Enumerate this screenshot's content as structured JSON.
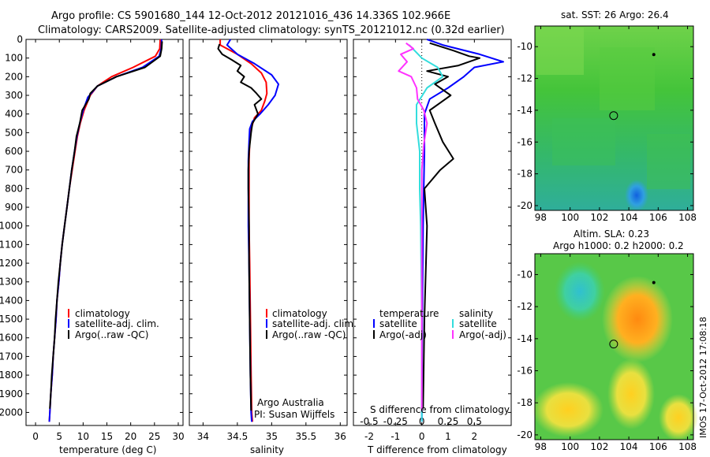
{
  "header": {
    "line1": "Argo profile: CS 5901680_144 12-Oct-2012 20121016_436 14.336S 102.966E",
    "line2": "Climatology: CARS2009. Satellite-adjusted climatology: synTS_20121012.nc (0.32d earlier)"
  },
  "stamp": "IMOS 17-Oct-2012 17:08:18",
  "colors": {
    "climatology": "#ff0000",
    "satellite": "#0000ff",
    "argo": "#000000",
    "argo_s_diff": "#ff33ff",
    "sat_s_diff": "#33dddd"
  },
  "chart_data": [
    {
      "id": "temperature",
      "type": "line",
      "xlabel": "temperature (deg C)",
      "ylabel": "",
      "xlim": [
        -2,
        31
      ],
      "ylim": [
        2070,
        0
      ],
      "xticks": [
        "0",
        "5",
        "10",
        "15",
        "20",
        "25",
        "30"
      ],
      "xtick_values": [
        0,
        5,
        10,
        15,
        20,
        25,
        30
      ],
      "yticks": [
        "0",
        "100",
        "200",
        "300",
        "400",
        "500",
        "600",
        "700",
        "800",
        "900",
        "1000",
        "1100",
        "1200",
        "1300",
        "1400",
        "1500",
        "1600",
        "1700",
        "1800",
        "1900",
        "2000"
      ],
      "ytick_values": [
        0,
        100,
        200,
        300,
        400,
        500,
        600,
        700,
        800,
        900,
        1000,
        1100,
        1200,
        1300,
        1400,
        1500,
        1600,
        1700,
        1800,
        1900,
        2000
      ],
      "legend": [
        "climatology",
        "satellite-adj. clim.",
        "Argo(..raw -QC)"
      ],
      "legend_position": "lower-left",
      "series": [
        {
          "name": "climatology",
          "color": "#ff0000",
          "points": [
            [
              26.2,
              0
            ],
            [
              26.1,
              50
            ],
            [
              25.2,
              90
            ],
            [
              20.5,
              150
            ],
            [
              16,
              200
            ],
            [
              13,
              250
            ],
            [
              11.5,
              300
            ],
            [
              10.2,
              380
            ],
            [
              9.4,
              450
            ],
            [
              8.8,
              520
            ],
            [
              8.3,
              600
            ],
            [
              7.7,
              700
            ],
            [
              7.1,
              800
            ],
            [
              6.6,
              900
            ],
            [
              6.1,
              1000
            ],
            [
              5.6,
              1100
            ],
            [
              5.2,
              1200
            ],
            [
              4.9,
              1300
            ],
            [
              4.5,
              1400
            ],
            [
              4.3,
              1500
            ],
            [
              4,
              1600
            ],
            [
              3.7,
              1700
            ],
            [
              3.5,
              1800
            ],
            [
              3.2,
              1900
            ],
            [
              3,
              2000
            ],
            [
              2.9,
              2050
            ]
          ]
        },
        {
          "name": "satellite-adj. clim.",
          "color": "#0000ff",
          "points": [
            [
              26.5,
              0
            ],
            [
              26.4,
              50
            ],
            [
              26.0,
              90
            ],
            [
              22.5,
              150
            ],
            [
              17,
              200
            ],
            [
              13,
              250
            ],
            [
              11,
              310
            ],
            [
              10,
              380
            ],
            [
              9.3,
              450
            ],
            [
              8.7,
              520
            ],
            [
              8.2,
              600
            ],
            [
              7.6,
              700
            ],
            [
              7.1,
              800
            ],
            [
              6.6,
              900
            ],
            [
              6.1,
              1000
            ],
            [
              5.6,
              1100
            ],
            [
              5.2,
              1200
            ],
            [
              4.9,
              1300
            ],
            [
              4.5,
              1400
            ],
            [
              4.3,
              1500
            ],
            [
              4,
              1600
            ],
            [
              3.7,
              1700
            ],
            [
              3.5,
              1800
            ],
            [
              3.2,
              1900
            ],
            [
              3,
              2000
            ],
            [
              2.9,
              2050
            ]
          ]
        },
        {
          "name": "Argo(..raw -QC)",
          "color": "#000000",
          "points": [
            [
              26.6,
              10
            ],
            [
              26.5,
              50
            ],
            [
              26.2,
              90
            ],
            [
              23,
              150
            ],
            [
              17,
              200
            ],
            [
              13,
              250
            ],
            [
              11.5,
              290
            ],
            [
              11.2,
              320
            ],
            [
              9.8,
              380
            ],
            [
              9.3,
              450
            ],
            [
              8.6,
              520
            ],
            [
              8.2,
              600
            ],
            [
              7.6,
              700
            ],
            [
              7.1,
              800
            ],
            [
              6.6,
              900
            ],
            [
              6.1,
              1000
            ],
            [
              5.6,
              1100
            ],
            [
              5.2,
              1200
            ],
            [
              4.8,
              1300
            ],
            [
              4.5,
              1400
            ],
            [
              4.2,
              1500
            ],
            [
              4,
              1600
            ],
            [
              3.7,
              1700
            ],
            [
              3.4,
              1800
            ],
            [
              3.2,
              1900
            ],
            [
              3,
              1980
            ]
          ]
        }
      ]
    },
    {
      "id": "salinity",
      "type": "line",
      "xlabel": "salinity",
      "ylabel": "",
      "xlim": [
        33.8,
        36.1
      ],
      "ylim": [
        2070,
        0
      ],
      "xticks": [
        "34",
        "34.5",
        "35",
        "35.5",
        "36"
      ],
      "xtick_values": [
        34,
        34.5,
        35,
        35.5,
        36
      ],
      "legend": [
        "climatology",
        "satellite-adj. clim.",
        "Argo(..raw -QC)"
      ],
      "legend_position": "lower-left",
      "annotation": [
        "Argo Australia",
        "PI: Susan Wijffels"
      ],
      "series": [
        {
          "name": "climatology",
          "color": "#ff0000",
          "points": [
            [
              34.25,
              0
            ],
            [
              34.25,
              30
            ],
            [
              34.5,
              80
            ],
            [
              34.7,
              130
            ],
            [
              34.85,
              180
            ],
            [
              34.92,
              230
            ],
            [
              34.93,
              290
            ],
            [
              34.9,
              330
            ],
            [
              34.85,
              380
            ],
            [
              34.75,
              420
            ],
            [
              34.7,
              480
            ],
            [
              34.68,
              550
            ],
            [
              34.67,
              650
            ],
            [
              34.67,
              800
            ],
            [
              34.67,
              1000
            ],
            [
              34.68,
              1200
            ],
            [
              34.69,
              1500
            ],
            [
              34.7,
              1800
            ],
            [
              34.71,
              2000
            ],
            [
              34.72,
              2050
            ]
          ]
        },
        {
          "name": "satellite-adj. clim.",
          "color": "#0000ff",
          "points": [
            [
              34.4,
              0
            ],
            [
              34.35,
              30
            ],
            [
              34.5,
              80
            ],
            [
              34.75,
              130
            ],
            [
              35.0,
              190
            ],
            [
              35.1,
              240
            ],
            [
              35.05,
              300
            ],
            [
              34.95,
              350
            ],
            [
              34.83,
              400
            ],
            [
              34.72,
              440
            ],
            [
              34.68,
              480
            ],
            [
              34.67,
              550
            ],
            [
              34.66,
              650
            ],
            [
              34.66,
              800
            ],
            [
              34.66,
              1000
            ],
            [
              34.67,
              1200
            ],
            [
              34.68,
              1500
            ],
            [
              34.69,
              1800
            ],
            [
              34.7,
              2000
            ],
            [
              34.71,
              2050
            ]
          ]
        },
        {
          "name": "Argo(..raw -QC)",
          "color": "#000000",
          "points": [
            [
              34.24,
              25
            ],
            [
              34.22,
              50
            ],
            [
              34.28,
              80
            ],
            [
              34.42,
              110
            ],
            [
              34.55,
              140
            ],
            [
              34.5,
              170
            ],
            [
              34.6,
              200
            ],
            [
              34.55,
              230
            ],
            [
              34.7,
              260
            ],
            [
              34.78,
              290
            ],
            [
              34.85,
              320
            ],
            [
              34.75,
              350
            ],
            [
              34.8,
              400
            ],
            [
              34.72,
              450
            ],
            [
              34.7,
              500
            ],
            [
              34.67,
              600
            ],
            [
              34.66,
              700
            ],
            [
              34.66,
              800
            ],
            [
              34.67,
              1000
            ],
            [
              34.67,
              1200
            ],
            [
              34.68,
              1500
            ],
            [
              34.69,
              1800
            ],
            [
              34.7,
              1990
            ]
          ]
        }
      ]
    },
    {
      "id": "difference",
      "type": "line",
      "xlabel": "T difference from climatology",
      "xlabel_top": "S difference from climatology",
      "xlim": [
        -2.6,
        3.4
      ],
      "ylim": [
        2070,
        0
      ],
      "xticks": [
        "-2",
        "-1",
        "0",
        "1",
        "2"
      ],
      "xtick_values": [
        -2,
        -1,
        0,
        1,
        2
      ],
      "xticks_s": [
        "-0.5",
        "-0.25",
        "0",
        "0.25",
        "0.5"
      ],
      "xticks_s_values": [
        -0.5,
        -0.25,
        0,
        0.25,
        0.5
      ],
      "legend_temperature": {
        "title": "temperature",
        "entries": [
          "satellite",
          "Argo(-adj)"
        ]
      },
      "legend_salinity": {
        "title": "salinity",
        "entries": [
          "satellite",
          "Argo(-adj)"
        ]
      },
      "series": [
        {
          "name": "T satellite",
          "color": "#0000ff",
          "points": [
            [
              0.2,
              0
            ],
            [
              0.8,
              30
            ],
            [
              2.2,
              80
            ],
            [
              3.1,
              120
            ],
            [
              2.0,
              150
            ],
            [
              1.6,
              200
            ],
            [
              1.0,
              260
            ],
            [
              0.3,
              320
            ],
            [
              0.1,
              400
            ],
            [
              0.1,
              600
            ],
            [
              0.05,
              1000
            ],
            [
              0.02,
              1500
            ],
            [
              0.0,
              2050
            ]
          ]
        },
        {
          "name": "T Argo(-adj)",
          "color": "#000000",
          "points": [
            [
              0.3,
              20
            ],
            [
              1.2,
              60
            ],
            [
              1.8,
              90
            ],
            [
              2.2,
              100
            ],
            [
              1.4,
              140
            ],
            [
              0.2,
              170
            ],
            [
              1.0,
              200
            ],
            [
              0.5,
              240
            ],
            [
              1.1,
              300
            ],
            [
              0.3,
              380
            ],
            [
              0.5,
              450
            ],
            [
              0.8,
              550
            ],
            [
              1.2,
              640
            ],
            [
              0.7,
              700
            ],
            [
              0.1,
              800
            ],
            [
              0.2,
              1000
            ],
            [
              0.1,
              1500
            ],
            [
              0.05,
              1980
            ]
          ]
        },
        {
          "name": "S satellite",
          "color": "#33dddd",
          "points": [
            [
              -0.12,
              30
            ],
            [
              0.0,
              100
            ],
            [
              0.15,
              150
            ],
            [
              0.2,
              200
            ],
            [
              0.05,
              260
            ],
            [
              -0.05,
              350
            ],
            [
              -0.05,
              450
            ],
            [
              -0.02,
              600
            ],
            [
              -0.02,
              800
            ],
            [
              -0.01,
              1000
            ],
            [
              0.0,
              1500
            ],
            [
              0.0,
              2050
            ]
          ]
        },
        {
          "name": "S Argo(-adj)",
          "color": "#ff33ff",
          "points": [
            [
              -0.15,
              20
            ],
            [
              -0.08,
              50
            ],
            [
              -0.2,
              80
            ],
            [
              -0.14,
              120
            ],
            [
              -0.22,
              170
            ],
            [
              -0.1,
              200
            ],
            [
              -0.05,
              260
            ],
            [
              -0.04,
              320
            ],
            [
              0.02,
              380
            ],
            [
              0.05,
              450
            ],
            [
              0.02,
              560
            ],
            [
              0.0,
              700
            ],
            [
              0.0,
              1000
            ],
            [
              0.0,
              1500
            ],
            [
              0.0,
              1990
            ]
          ]
        }
      ]
    },
    {
      "id": "sst_map",
      "type": "heatmap",
      "title": "sat. SST: 26 Argo: 26.4",
      "xticks": [
        "98",
        "100",
        "102",
        "104",
        "106",
        "108"
      ],
      "xtick_values": [
        98,
        100,
        102,
        104,
        106,
        108
      ],
      "yticks": [
        "-10",
        "-12",
        "-14",
        "-16",
        "-18",
        "-20"
      ],
      "ytick_values": [
        -10,
        -12,
        -14,
        -16,
        -18,
        -20
      ],
      "xlim": [
        97.6,
        108.4
      ],
      "ylim": [
        -20.3,
        -8.7
      ],
      "profile_location": [
        102.966,
        -14.336
      ],
      "previous_location": [
        105.7,
        -10.5
      ]
    },
    {
      "id": "sla_map",
      "type": "heatmap",
      "title": "Altim. SLA: 0.23",
      "subtitle": "Argo h1000: 0.2 h2000: 0.2",
      "xticks": [
        "98",
        "100",
        "102",
        "104",
        "106",
        "108"
      ],
      "xtick_values": [
        98,
        100,
        102,
        104,
        106,
        108
      ],
      "yticks": [
        "-10",
        "-12",
        "-14",
        "-16",
        "-18",
        "-20"
      ],
      "ytick_values": [
        -10,
        -12,
        -14,
        -16,
        -18,
        -20
      ],
      "xlim": [
        97.6,
        108.4
      ],
      "ylim": [
        -20.3,
        -8.7
      ],
      "profile_location": [
        102.966,
        -14.336
      ],
      "previous_location": [
        105.7,
        -10.5
      ]
    }
  ]
}
